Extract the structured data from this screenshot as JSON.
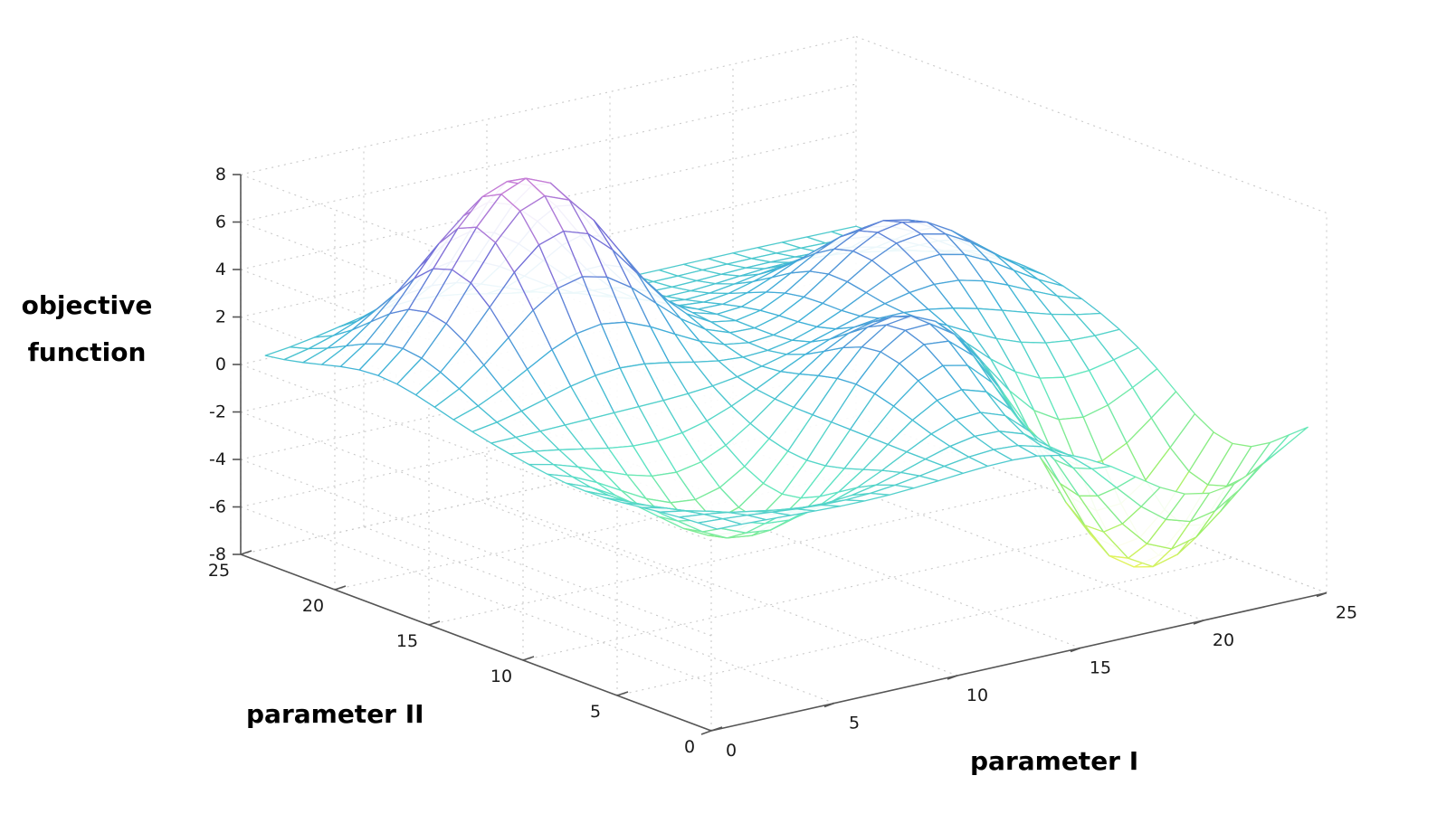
{
  "chart_data": {
    "type": "surface",
    "zlabel": "objective function",
    "xlabel": "parameter I",
    "ylabel": "parameter II",
    "xlim": [
      0,
      25
    ],
    "ylim": [
      0,
      25
    ],
    "zlim": [
      -8,
      8
    ],
    "xticks": [
      "0",
      "5",
      "10",
      "15",
      "20",
      "25"
    ],
    "yticks": [
      "0",
      "5",
      "10",
      "15",
      "20",
      "25"
    ],
    "zticks": [
      "-8",
      "-6",
      "-4",
      "-2",
      "0",
      "2",
      "4",
      "6",
      "8"
    ],
    "grid": true,
    "colormap": [
      "#fff45a",
      "#9ff06a",
      "#5fe6c2",
      "#3fb0d8",
      "#6f6fd8",
      "#d27fd6"
    ],
    "mesh": {
      "x_range": [
        1,
        25
      ],
      "y_range": [
        1,
        25
      ],
      "resolution": 25,
      "peaks": [
        {
          "x": 7,
          "y": 19,
          "z": 8.0
        },
        {
          "x": 20,
          "y": 16,
          "z": 4.0
        },
        {
          "x": 15,
          "y": 8,
          "z": 4.0
        }
      ],
      "valleys": [
        {
          "x": 7,
          "y": 8,
          "z": -3.8
        },
        {
          "x": 21,
          "y": 5,
          "z": -7.8
        }
      ],
      "base": 0
    }
  }
}
